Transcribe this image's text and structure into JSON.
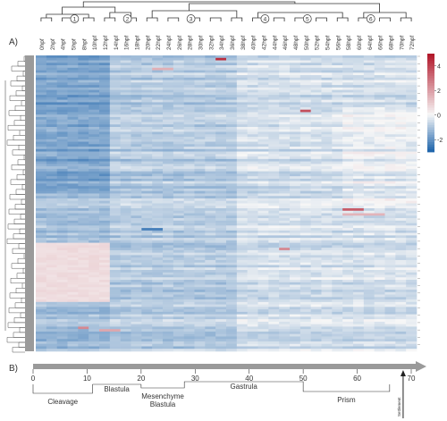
{
  "panel_a_label": "A)",
  "panel_b_label": "B)",
  "column_labels": [
    "0hpf",
    "2hpf",
    "4hpf",
    "5hpf",
    "8hpf",
    "10hpf",
    "12hpf",
    "14hpf",
    "16hpf",
    "18hpf",
    "20hpf",
    "22hpf",
    "24hpf",
    "26hpf",
    "28hpf",
    "30hpf",
    "32hpf",
    "34hpf",
    "36hpf",
    "38hpf",
    "40hpf",
    "42hpf",
    "44hpf",
    "46hpf",
    "48hpf",
    "50hpf",
    "52hpf",
    "54hpf",
    "56hpf",
    "58hpf",
    "60hpf",
    "64hpf",
    "66hpf",
    "68hpf",
    "70hpf",
    "72hpf"
  ],
  "cluster_markers": [
    "1",
    "2",
    "3",
    "4",
    "5",
    "6"
  ],
  "colorbar": {
    "ticks": [
      "4",
      "2",
      "0",
      "-2"
    ],
    "colors": {
      "high": "#b2182b",
      "mid": "#f7f7f7",
      "low": "#2166ac"
    }
  },
  "timeline": {
    "ticks": [
      "0",
      "10",
      "20",
      "30",
      "40",
      "50",
      "60",
      "70"
    ],
    "stages": [
      "Cleavage",
      "Blastula",
      "Mesenchyme\nBlastula",
      "Gastrula",
      "Prism"
    ],
    "arrow_label": "Settlement"
  },
  "chart_data": {
    "type": "heatmap",
    "x_categories": [
      "0hpf",
      "2hpf",
      "4hpf",
      "5hpf",
      "8hpf",
      "10hpf",
      "12hpf",
      "14hpf",
      "16hpf",
      "18hpf",
      "20hpf",
      "22hpf",
      "24hpf",
      "26hpf",
      "28hpf",
      "30hpf",
      "32hpf",
      "34hpf",
      "36hpf",
      "38hpf",
      "40hpf",
      "42hpf",
      "44hpf",
      "46hpf",
      "48hpf",
      "50hpf",
      "52hpf",
      "54hpf",
      "56hpf",
      "58hpf",
      "60hpf",
      "64hpf",
      "66hpf",
      "68hpf",
      "70hpf",
      "72hpf"
    ],
    "value_range": [
      -3,
      5
    ],
    "colorscale": "blue-white-red",
    "row_count": 120
  }
}
